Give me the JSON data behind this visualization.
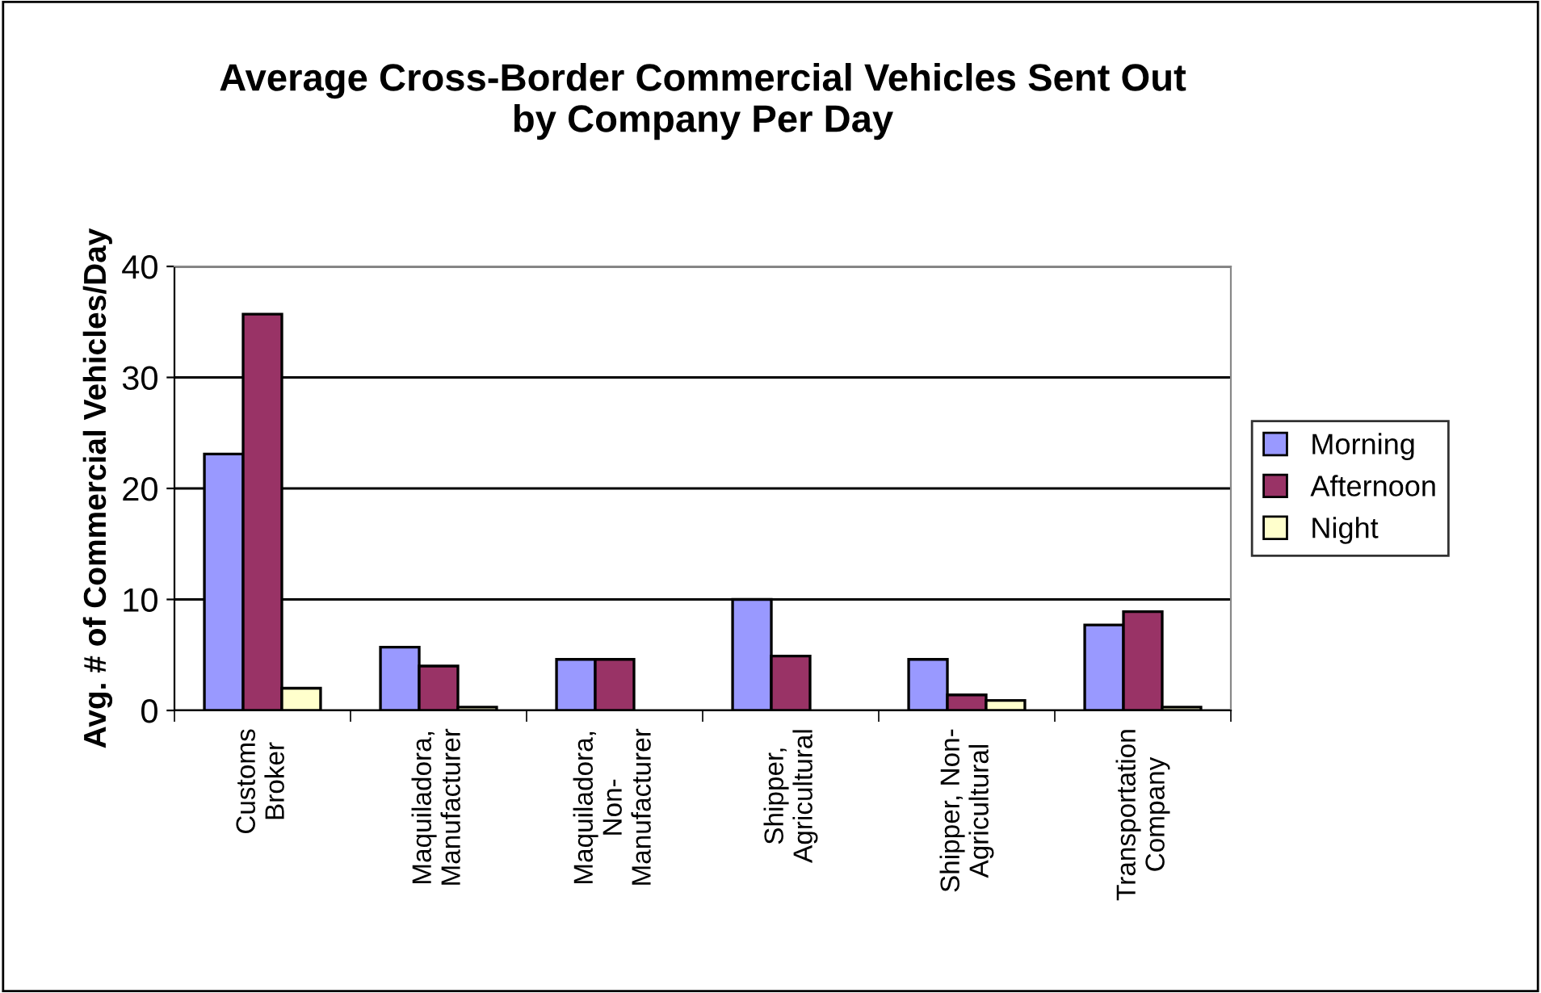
{
  "chart_data": {
    "type": "bar",
    "title": "Average Cross-Border Commercial Vehicles Sent Out\nby Company Per Day",
    "ylabel": "Avg. # of Commercial Vehicles/Day",
    "categories": [
      "Customs\nBroker",
      "Maquiladora,\nManufacturer",
      "Maquiladora,\nNon-\nManufacturer",
      "Shipper,\nAgricultural",
      "Shipper, Non-\nAgricultural",
      "Transportation\nCompany"
    ],
    "series": [
      {
        "name": "Morning",
        "color": "#9999ff",
        "values": [
          23.1,
          5.7,
          4.6,
          10.0,
          4.6,
          7.7
        ]
      },
      {
        "name": "Afternoon",
        "color": "#993366",
        "values": [
          35.7,
          4.0,
          4.6,
          4.9,
          1.4,
          8.9
        ]
      },
      {
        "name": "Night",
        "color": "#ffffcc",
        "values": [
          2.0,
          0.3,
          null,
          null,
          0.9,
          0.3
        ]
      }
    ],
    "ylim": [
      0,
      40
    ],
    "yticks": [
      0,
      10,
      20,
      30,
      40
    ],
    "grid": "y",
    "legend": "right"
  }
}
